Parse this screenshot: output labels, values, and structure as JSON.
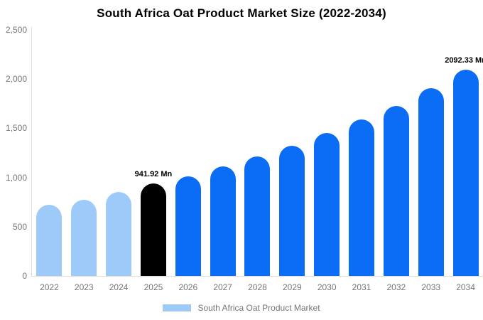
{
  "title": "South Africa Oat Product Market Size (2022-2034)",
  "colors": {
    "background": "#FFFFFF",
    "axis_line": "#DDDDDD",
    "tick_text": "#757575",
    "annotation_text": "#000000"
  },
  "legend": {
    "entries": [
      {
        "label": "South Africa Oat Product Market",
        "color": "#9DCAF8"
      }
    ]
  },
  "chart_data": {
    "type": "bar",
    "title": "South Africa Oat Product Market Size (2022-2034)",
    "unit": "Mn",
    "xlabel": "",
    "ylabel": "",
    "grid": false,
    "legend_position": "bottom",
    "ylim": [
      0,
      2500
    ],
    "yticks": [
      {
        "value": 0,
        "label": "0"
      },
      {
        "value": 500,
        "label": "500"
      },
      {
        "value": 1000,
        "label": "1,000"
      },
      {
        "value": 1500,
        "label": "1,500"
      },
      {
        "value": 2000,
        "label": "2,000"
      },
      {
        "value": 2500,
        "label": "2,500"
      }
    ],
    "categories": [
      "2022",
      "2023",
      "2024",
      "2025",
      "2026",
      "2027",
      "2028",
      "2029",
      "2030",
      "2031",
      "2032",
      "2033",
      "2034"
    ],
    "values": [
      720,
      775,
      850,
      941.92,
      1014,
      1114,
      1213,
      1323,
      1452,
      1590,
      1730,
      1910,
      2092.33
    ],
    "series_roles": [
      "historical",
      "historical",
      "historical",
      "base",
      "forecast",
      "forecast",
      "forecast",
      "forecast",
      "forecast",
      "forecast",
      "forecast",
      "forecast",
      "forecast"
    ],
    "role_colors": {
      "historical": "#9DCAF8",
      "base": "#000000",
      "forecast": "#0B6CF5"
    },
    "annotations": [
      {
        "category": "2025",
        "text": "941.92 Mn"
      },
      {
        "category": "2034",
        "text": "2092.33 Mn"
      }
    ]
  }
}
